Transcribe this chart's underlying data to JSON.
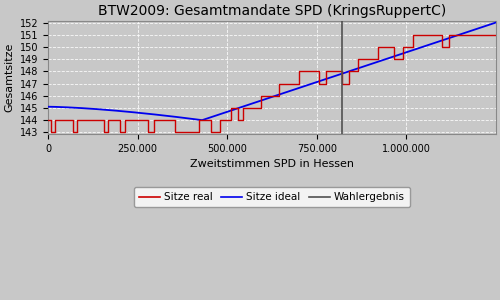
{
  "title": "BTW2009: Gesamtmandate SPD (KringsRuppertC)",
  "xlabel": "Zweitstimmen SPD in Hessen",
  "ylabel": "Gesamtsitze",
  "background_color": "#C8C8C8",
  "xlim": [
    0,
    1250000
  ],
  "ylim_min": 143,
  "ylim_max": 152,
  "yticks": [
    143,
    144,
    145,
    146,
    147,
    148,
    149,
    150,
    151,
    152
  ],
  "xticks": [
    0,
    250000,
    500000,
    750000,
    1000000
  ],
  "xtick_labels": [
    "0",
    "250.000",
    "500.000",
    "750.000",
    "1.000.000"
  ],
  "wahlergebnis_x": 820000,
  "ideal_color": "#0000EE",
  "real_color": "#CC0000",
  "wahlergebnis_color": "#505050",
  "legend_labels": [
    "Sitze real",
    "Sitze ideal",
    "Wahlergebnis"
  ],
  "real_steps": [
    [
      0,
      144
    ],
    [
      8000,
      143
    ],
    [
      18000,
      144
    ],
    [
      70000,
      143
    ],
    [
      82000,
      144
    ],
    [
      155000,
      143
    ],
    [
      168000,
      144
    ],
    [
      200000,
      143
    ],
    [
      215000,
      144
    ],
    [
      280000,
      143
    ],
    [
      295000,
      144
    ],
    [
      355000,
      143
    ],
    [
      420000,
      144
    ],
    [
      455000,
      143
    ],
    [
      480000,
      144
    ],
    [
      510000,
      145
    ],
    [
      530000,
      144
    ],
    [
      545000,
      145
    ],
    [
      595000,
      146
    ],
    [
      645000,
      147
    ],
    [
      700000,
      148
    ],
    [
      755000,
      147
    ],
    [
      775000,
      148
    ],
    [
      820000,
      147
    ],
    [
      840000,
      148
    ],
    [
      865000,
      149
    ],
    [
      920000,
      150
    ],
    [
      965000,
      149
    ],
    [
      990000,
      150
    ],
    [
      1020000,
      151
    ],
    [
      1100000,
      150
    ],
    [
      1120000,
      151
    ],
    [
      1250000,
      151
    ]
  ],
  "ideal_points": [
    [
      0,
      145.1
    ],
    [
      50000,
      144.95
    ],
    [
      100000,
      144.8
    ],
    [
      150000,
      144.65
    ],
    [
      200000,
      144.5
    ],
    [
      250000,
      144.37
    ],
    [
      300000,
      144.24
    ],
    [
      350000,
      144.13
    ],
    [
      400000,
      144.04
    ],
    [
      430000,
      144.0
    ],
    [
      500000,
      144.18
    ],
    [
      600000,
      144.8
    ],
    [
      700000,
      145.8
    ],
    [
      800000,
      146.9
    ],
    [
      900000,
      148.05
    ],
    [
      1000000,
      149.25
    ],
    [
      1100000,
      150.45
    ],
    [
      1200000,
      151.6
    ],
    [
      1250000,
      152.0
    ]
  ]
}
